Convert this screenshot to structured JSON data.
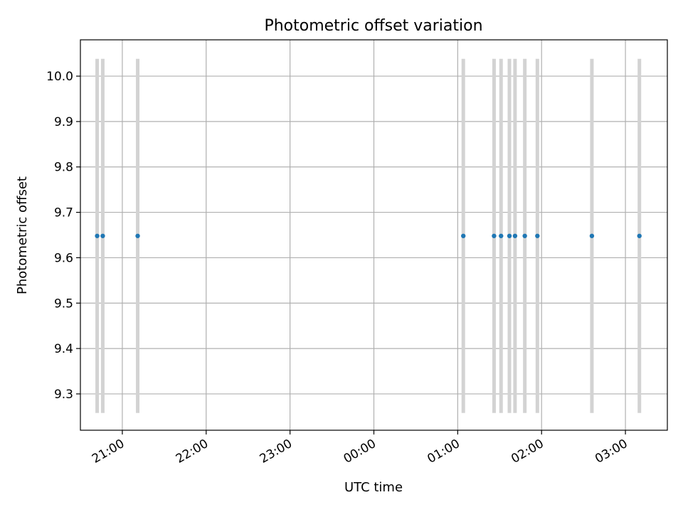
{
  "chart_data": {
    "type": "scatter",
    "title": "Photometric offset variation",
    "xlabel": "UTC time",
    "ylabel": "Photometric offset",
    "grid": true,
    "xlim": [
      "20:30",
      "03:30"
    ],
    "ylim": [
      9.22,
      10.08
    ],
    "xticks": [
      "21:00",
      "22:00",
      "23:00",
      "00:00",
      "01:00",
      "02:00",
      "03:00"
    ],
    "yticks": [
      "9.3",
      "9.4",
      "9.5",
      "9.6",
      "9.7",
      "9.8",
      "9.9",
      "10.0"
    ],
    "points": [
      {
        "x": "20:42",
        "y": 9.648,
        "err_low": 9.258,
        "err_high": 10.038
      },
      {
        "x": "20:46",
        "y": 9.648,
        "err_low": 9.258,
        "err_high": 10.038
      },
      {
        "x": "21:11",
        "y": 9.648,
        "err_low": 9.258,
        "err_high": 10.038
      },
      {
        "x": "01:04",
        "y": 9.648,
        "err_low": 9.258,
        "err_high": 10.038
      },
      {
        "x": "01:26",
        "y": 9.648,
        "err_low": 9.258,
        "err_high": 10.038
      },
      {
        "x": "01:31",
        "y": 9.648,
        "err_low": 9.258,
        "err_high": 10.038
      },
      {
        "x": "01:37",
        "y": 9.648,
        "err_low": 9.258,
        "err_high": 10.038
      },
      {
        "x": "01:41",
        "y": 9.648,
        "err_low": 9.258,
        "err_high": 10.038
      },
      {
        "x": "01:48",
        "y": 9.648,
        "err_low": 9.258,
        "err_high": 10.038
      },
      {
        "x": "01:57",
        "y": 9.648,
        "err_low": 9.258,
        "err_high": 10.038
      },
      {
        "x": "02:36",
        "y": 9.648,
        "err_low": 9.258,
        "err_high": 10.038
      },
      {
        "x": "03:10",
        "y": 9.648,
        "err_low": 9.258,
        "err_high": 10.038
      }
    ],
    "colors": {
      "marker": "#1f77b4",
      "errorbar": "#d3d3d3",
      "grid": "#b0b0b0"
    }
  }
}
